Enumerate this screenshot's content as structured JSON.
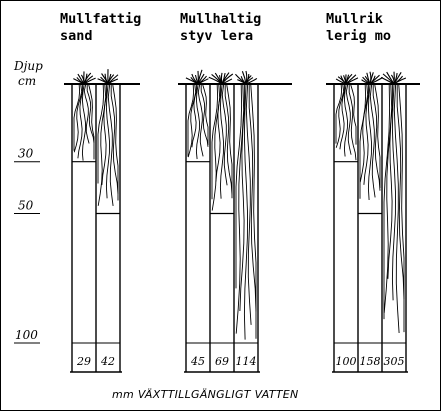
{
  "axis": {
    "title_line1": "Djup",
    "title_line2": "cm",
    "ticks": [
      {
        "label": "30",
        "depth": 30
      },
      {
        "label": "50",
        "depth": 50
      },
      {
        "label": "100",
        "depth": 100
      }
    ]
  },
  "groups": [
    {
      "id": "mullfattig-sand",
      "title_line1": "Mullfattig",
      "title_line2": "sand",
      "columns": [
        {
          "depth_cm": 30,
          "value": "29"
        },
        {
          "depth_cm": 50,
          "value": "42"
        }
      ]
    },
    {
      "id": "mullhaltig-styv-lera",
      "title_line1": "Mullhaltig",
      "title_line2": "styv lera",
      "columns": [
        {
          "depth_cm": 30,
          "value": "45"
        },
        {
          "depth_cm": 50,
          "value": "69"
        },
        {
          "depth_cm": 100,
          "value": "114"
        }
      ]
    },
    {
      "id": "mullrik-lerig-mo",
      "title_line1": "Mullrik",
      "title_line2": "lerig mo",
      "columns": [
        {
          "depth_cm": 30,
          "value": "100"
        },
        {
          "depth_cm": 50,
          "value": "158"
        },
        {
          "depth_cm": 100,
          "value": "305"
        }
      ]
    }
  ],
  "caption": "mm VÄXTTILLGÄNGLIGT VATTEN"
}
